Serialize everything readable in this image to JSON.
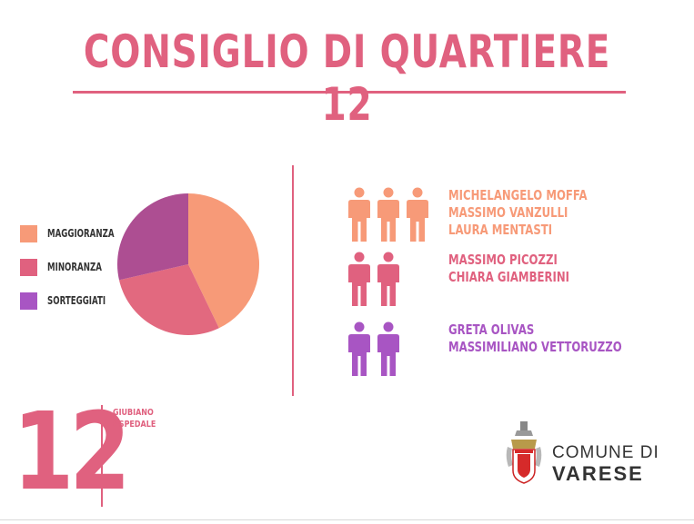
{
  "title": "CONSIGLIO DI QUARTIERE 12",
  "colors": {
    "accent": "#e0617f",
    "maggioranza": "#f79a78",
    "minoranza": "#e0617f",
    "sorteggiati": "#a855c3",
    "pie_minoranza": "#e2697f",
    "pie_sorteggiati": "#ad4e92"
  },
  "chart_data": {
    "type": "pie",
    "title": "",
    "labels": [
      "MAGGIORANZA",
      "MINORANZA",
      "SORTEGGIATI"
    ],
    "values": [
      3,
      2,
      2
    ],
    "legend_position": "left"
  },
  "groups": [
    {
      "icon": "person-icon",
      "count": 3,
      "names": [
        "MICHELANGELO MOFFA",
        "MASSIMO VANZULLI",
        "LAURA MENTASTI"
      ]
    },
    {
      "icon": "person-icon",
      "count": 2,
      "names": [
        "MASSIMO PICOZZI",
        "CHIARA GIAMBERINI"
      ]
    },
    {
      "icon": "person-icon",
      "count": 2,
      "names": [
        "GRETA OLIVAS",
        "MASSIMILIANO VETTORUZZO"
      ]
    }
  ],
  "quartiere": {
    "number": "12",
    "name_line1": "GIUBIANO",
    "name_line2": "OSPEDALE"
  },
  "logo": {
    "icon": "coat-of-arms-icon",
    "line1": "COMUNE DI",
    "line2": "VARESE"
  }
}
